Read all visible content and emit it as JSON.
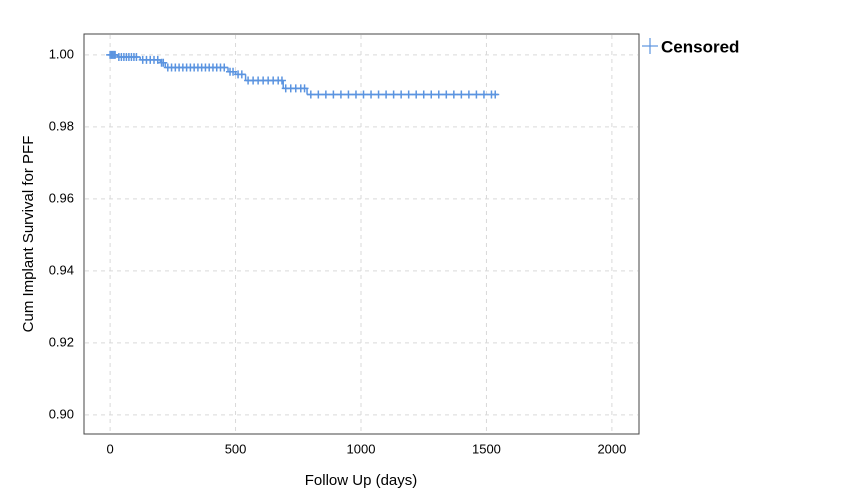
{
  "chart_data": {
    "type": "survival",
    "xlabel": "Follow Up (days)",
    "ylabel": "Cum Implant Survival for PFF",
    "xlim": [
      -104,
      2108
    ],
    "ylim": [
      0.8947,
      1.0058
    ],
    "xticks": [
      0,
      500,
      1000,
      1500,
      2000
    ],
    "yticks": [
      {
        "value": 0.9,
        "label": "0.90"
      },
      0.92,
      0.94,
      0.96,
      0.98,
      {
        "value": 1,
        "label": "1.00"
      }
    ],
    "grid": true,
    "survival": {
      "color": "#5b94e0",
      "x": [
        0,
        30,
        120,
        200,
        220,
        470,
        500,
        540,
        690,
        785,
        1542
      ],
      "values": [
        1.0,
        0.9994,
        0.9986,
        0.9978,
        0.9965,
        0.9953,
        0.9946,
        0.9929,
        0.9907,
        0.989,
        0.989
      ]
    },
    "censored": {
      "name": "Censored",
      "color": "#5b94e0",
      "x": [
        0,
        5,
        10,
        15,
        20,
        35,
        45,
        55,
        65,
        75,
        85,
        95,
        105,
        130,
        145,
        160,
        175,
        190,
        205,
        212,
        230,
        245,
        260,
        275,
        290,
        305,
        320,
        335,
        350,
        365,
        380,
        395,
        410,
        425,
        440,
        455,
        478,
        490,
        510,
        525,
        550,
        570,
        590,
        610,
        630,
        650,
        670,
        685,
        700,
        720,
        740,
        760,
        775,
        800,
        830,
        860,
        890,
        920,
        950,
        980,
        1010,
        1040,
        1070,
        1100,
        1130,
        1160,
        1190,
        1220,
        1250,
        1280,
        1310,
        1340,
        1370,
        1400,
        1430,
        1460,
        1490,
        1520,
        1535
      ],
      "values": [
        1.0,
        1.0,
        1.0,
        1.0,
        1.0,
        0.9994,
        0.9994,
        0.9994,
        0.9994,
        0.9994,
        0.9994,
        0.9994,
        0.9994,
        0.9986,
        0.9986,
        0.9986,
        0.9986,
        0.9986,
        0.9978,
        0.9978,
        0.9965,
        0.9965,
        0.9965,
        0.9965,
        0.9965,
        0.9965,
        0.9965,
        0.9965,
        0.9965,
        0.9965,
        0.9965,
        0.9965,
        0.9965,
        0.9965,
        0.9965,
        0.9965,
        0.9953,
        0.9953,
        0.9946,
        0.9946,
        0.9929,
        0.9929,
        0.9929,
        0.9929,
        0.9929,
        0.9929,
        0.9929,
        0.9929,
        0.9907,
        0.9907,
        0.9907,
        0.9907,
        0.9907,
        0.989,
        0.989,
        0.989,
        0.989,
        0.989,
        0.989,
        0.989,
        0.989,
        0.989,
        0.989,
        0.989,
        0.989,
        0.989,
        0.989,
        0.989,
        0.989,
        0.989,
        0.989,
        0.989,
        0.989,
        0.989,
        0.989,
        0.989,
        0.989,
        0.989,
        0.989
      ]
    }
  }
}
